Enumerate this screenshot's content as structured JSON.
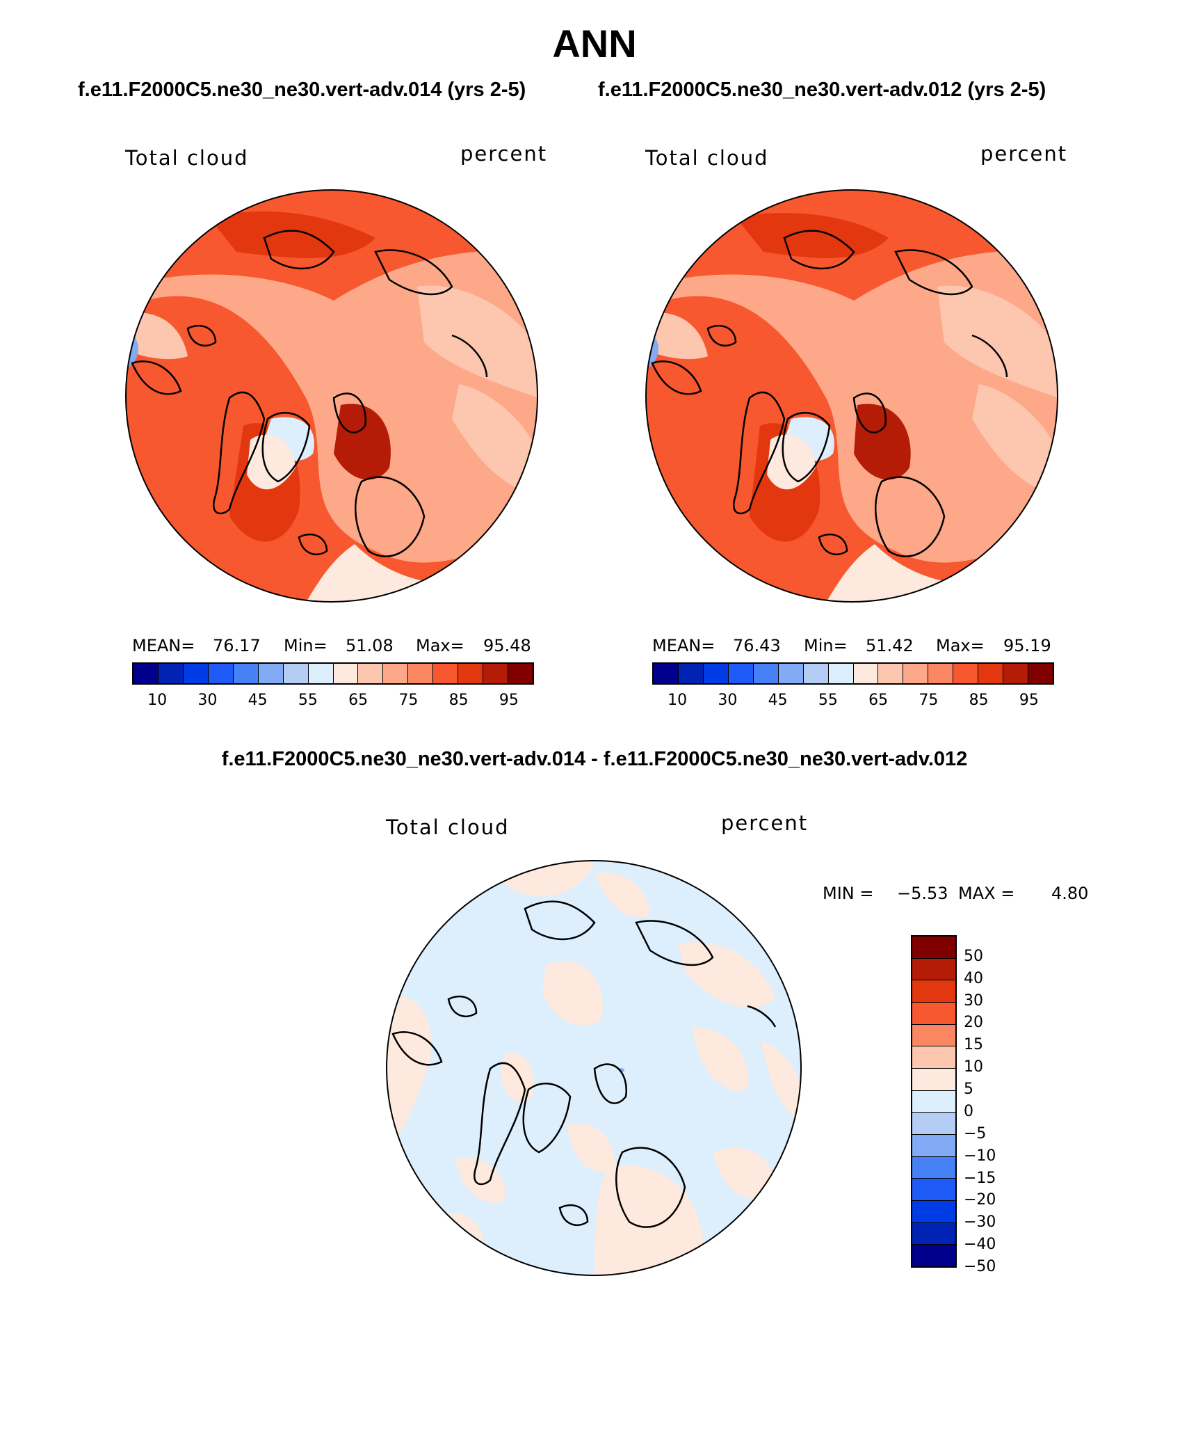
{
  "title": "ANN",
  "left_subtitle": "f.e11.F2000C5.ne30_ne30.vert-adv.014 (yrs 2-5)",
  "right_subtitle": "f.e11.F2000C5.ne30_ne30.vert-adv.012 (yrs 2-5)",
  "diff_subtitle": "f.e11.F2000C5.ne30_ne30.vert-adv.014 - f.e11.F2000C5.ne30_ne30.vert-adv.012",
  "panels": [
    {
      "variable": "Total cloud",
      "units": "percent",
      "mean_label": "MEAN=",
      "mean": "76.17",
      "min_label": "Min=",
      "min": "51.08",
      "max_label": "Max=",
      "max": "95.48"
    },
    {
      "variable": "Total cloud",
      "units": "percent",
      "mean_label": "MEAN=",
      "mean": "76.43",
      "min_label": "Min=",
      "min": "51.42",
      "max_label": "Max=",
      "max": "95.19"
    }
  ],
  "diff_panel": {
    "variable": "Total cloud",
    "units": "percent",
    "min_label": "MIN =",
    "min": "−5.53",
    "max_label": "MAX =",
    "max": "4.80"
  },
  "colorbar_abs": {
    "colors": [
      "#00008c",
      "#0023b4",
      "#003ce6",
      "#1e5af5",
      "#4682f5",
      "#82aaf5",
      "#b4cdf5",
      "#ddeefc",
      "#fde9dd",
      "#fcc7ae",
      "#fca889",
      "#fb8662",
      "#f7582f",
      "#e33710",
      "#b51c08",
      "#800000"
    ],
    "ticks": [
      "10",
      "30",
      "45",
      "55",
      "65",
      "75",
      "85",
      "95"
    ]
  },
  "colorbar_diff": {
    "colors": [
      "#800000",
      "#b51c08",
      "#e33710",
      "#f7582f",
      "#fb8662",
      "#fcc7ae",
      "#fde9dd",
      "#ddeefc",
      "#b4cdf5",
      "#82aaf5",
      "#4682f5",
      "#1e5af5",
      "#003ce6",
      "#0023b4",
      "#00008c"
    ],
    "ticks": [
      "50",
      "40",
      "30",
      "20",
      "15",
      "10",
      "5",
      "0",
      "−5",
      "−10",
      "−15",
      "−20",
      "−30",
      "−40",
      "−50"
    ]
  }
}
